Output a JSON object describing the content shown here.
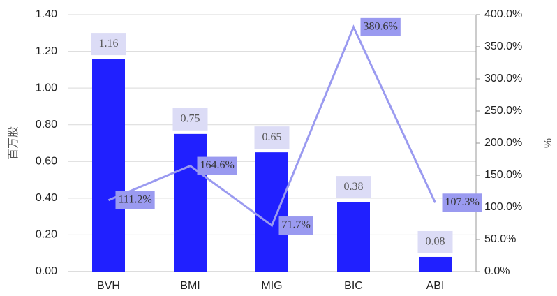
{
  "chart_data": {
    "type": "bar_line",
    "categories": [
      "BVH",
      "BMI",
      "MIG",
      "BIC",
      "ABI"
    ],
    "series": [
      {
        "name": "百万股",
        "color": "#2020ff",
        "values": [
          1.16,
          0.75,
          0.65,
          0.38,
          0.08
        ]
      },
      {
        "name": "%",
        "color": "#9a9af0",
        "axis": "y2",
        "values": [
          111.2,
          164.6,
          71.7,
          380.6,
          107.3
        ],
        "value_labels": [
          "111.2%",
          "164.6%",
          "71.7%",
          "380.6%",
          "107.3%"
        ]
      }
    ],
    "ylabel": "百万股",
    "y2label": "%",
    "ylim": [
      0,
      1.4
    ],
    "yticks": [
      {
        "value": 0,
        "label": "0.00"
      },
      {
        "value": 0.2,
        "label": "0.20"
      },
      {
        "value": 0.4,
        "label": "0.40"
      },
      {
        "value": 0.6,
        "label": "0.60"
      },
      {
        "value": 0.8,
        "label": "0.80"
      },
      {
        "value": 1.0,
        "label": "1.00"
      },
      {
        "value": 1.2,
        "label": "1.20"
      },
      {
        "value": 1.4,
        "label": "1.40"
      }
    ],
    "y2lim": [
      0,
      400
    ],
    "y2ticks": [
      {
        "value": 0,
        "label": "0.0%"
      },
      {
        "value": 50,
        "label": "50.0%"
      },
      {
        "value": 100,
        "label": "100.0%"
      },
      {
        "value": 150,
        "label": "150.0%"
      },
      {
        "value": 200,
        "label": "200.0%"
      },
      {
        "value": 250,
        "label": "250.0%"
      },
      {
        "value": 300,
        "label": "300.0%"
      },
      {
        "value": 350,
        "label": "350.0%"
      },
      {
        "value": 400,
        "label": "400.0%"
      }
    ],
    "grid": true
  }
}
